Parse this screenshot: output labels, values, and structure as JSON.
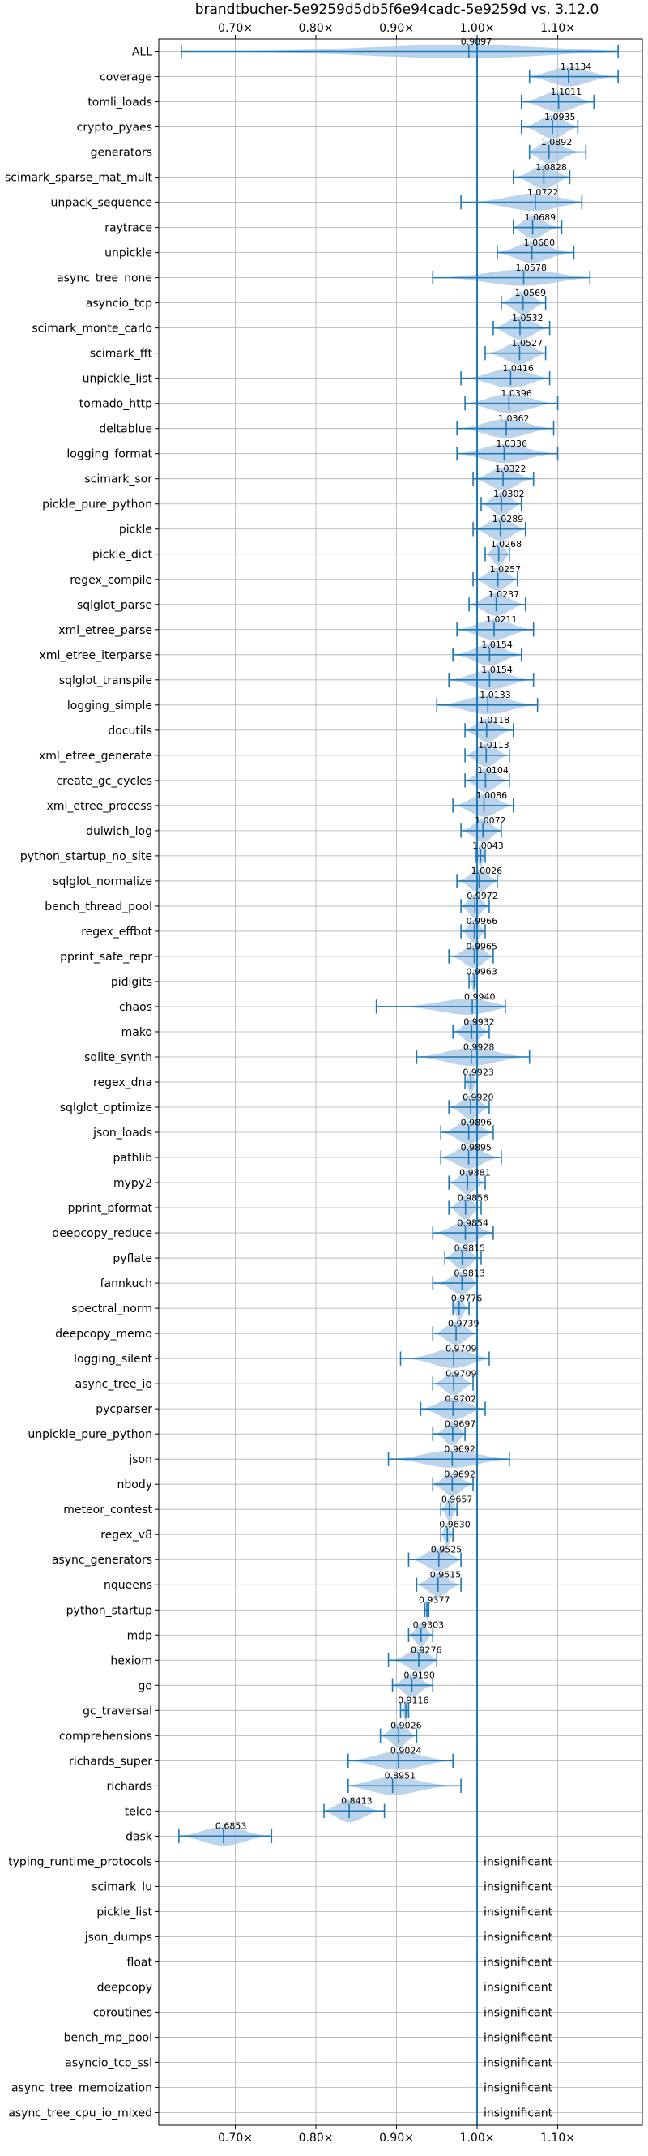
{
  "chart_data": {
    "type": "violin",
    "title": "brandtbucher-5e9259d5db5f6e94cadc-5e9259d vs. 3.12.0",
    "xlim": [
      0.605,
      1.205
    ],
    "xticks": [
      0.7,
      0.8,
      0.9,
      1.0,
      1.1
    ],
    "xtick_labels": [
      "0.70×",
      "0.80×",
      "0.90×",
      "1.00×",
      "1.10×"
    ],
    "reference_line": 1.0,
    "grid": true,
    "colors": {
      "violin": "#a6c6e4",
      "whisker": "#1f77b4",
      "reference": "#1f77b4",
      "grid": "#b0b0b0"
    },
    "benchmarks": [
      {
        "name": "ALL",
        "value": 0.9897,
        "label": "0.9897",
        "min": 0.633,
        "max": 1.175
      },
      {
        "name": "coverage",
        "value": 1.1134,
        "label": "1.1134",
        "min": 1.065,
        "max": 1.175
      },
      {
        "name": "tomli_loads",
        "value": 1.1011,
        "label": "1.1011",
        "min": 1.055,
        "max": 1.145
      },
      {
        "name": "crypto_pyaes",
        "value": 1.0935,
        "label": "1.0935",
        "min": 1.055,
        "max": 1.125
      },
      {
        "name": "generators",
        "value": 1.0892,
        "label": "1.0892",
        "min": 1.065,
        "max": 1.135
      },
      {
        "name": "scimark_sparse_mat_mult",
        "value": 1.0828,
        "label": "1.0828",
        "min": 1.045,
        "max": 1.115
      },
      {
        "name": "unpack_sequence",
        "value": 1.0722,
        "label": "1.0722",
        "min": 0.98,
        "max": 1.13
      },
      {
        "name": "raytrace",
        "value": 1.0689,
        "label": "1.0689",
        "min": 1.045,
        "max": 1.105
      },
      {
        "name": "unpickle",
        "value": 1.068,
        "label": "1.0680",
        "min": 1.025,
        "max": 1.12
      },
      {
        "name": "async_tree_none",
        "value": 1.0578,
        "label": "1.0578",
        "min": 0.945,
        "max": 1.14
      },
      {
        "name": "asyncio_tcp",
        "value": 1.0569,
        "label": "1.0569",
        "min": 1.03,
        "max": 1.085
      },
      {
        "name": "scimark_monte_carlo",
        "value": 1.0532,
        "label": "1.0532",
        "min": 1.02,
        "max": 1.09
      },
      {
        "name": "scimark_fft",
        "value": 1.0527,
        "label": "1.0527",
        "min": 1.01,
        "max": 1.085
      },
      {
        "name": "unpickle_list",
        "value": 1.0416,
        "label": "1.0416",
        "min": 0.98,
        "max": 1.09
      },
      {
        "name": "tornado_http",
        "value": 1.0396,
        "label": "1.0396",
        "min": 0.985,
        "max": 1.1
      },
      {
        "name": "deltablue",
        "value": 1.0362,
        "label": "1.0362",
        "min": 0.975,
        "max": 1.095
      },
      {
        "name": "logging_format",
        "value": 1.0336,
        "label": "1.0336",
        "min": 0.975,
        "max": 1.1
      },
      {
        "name": "scimark_sor",
        "value": 1.0322,
        "label": "1.0322",
        "min": 0.995,
        "max": 1.07
      },
      {
        "name": "pickle_pure_python",
        "value": 1.0302,
        "label": "1.0302",
        "min": 1.005,
        "max": 1.055
      },
      {
        "name": "pickle",
        "value": 1.0289,
        "label": "1.0289",
        "min": 0.995,
        "max": 1.06
      },
      {
        "name": "pickle_dict",
        "value": 1.0268,
        "label": "1.0268",
        "min": 1.01,
        "max": 1.04
      },
      {
        "name": "regex_compile",
        "value": 1.0257,
        "label": "1.0257",
        "min": 0.995,
        "max": 1.05
      },
      {
        "name": "sqlglot_parse",
        "value": 1.0237,
        "label": "1.0237",
        "min": 0.99,
        "max": 1.06
      },
      {
        "name": "xml_etree_parse",
        "value": 1.0211,
        "label": "1.0211",
        "min": 0.975,
        "max": 1.07
      },
      {
        "name": "xml_etree_iterparse",
        "value": 1.0154,
        "label": "1.0154",
        "min": 0.97,
        "max": 1.055
      },
      {
        "name": "sqlglot_transpile",
        "value": 1.0154,
        "label": "1.0154",
        "min": 0.965,
        "max": 1.07
      },
      {
        "name": "logging_simple",
        "value": 1.0133,
        "label": "1.0133",
        "min": 0.95,
        "max": 1.075
      },
      {
        "name": "docutils",
        "value": 1.0118,
        "label": "1.0118",
        "min": 0.985,
        "max": 1.045
      },
      {
        "name": "xml_etree_generate",
        "value": 1.0113,
        "label": "1.0113",
        "min": 0.985,
        "max": 1.04
      },
      {
        "name": "create_gc_cycles",
        "value": 1.0104,
        "label": "1.0104",
        "min": 0.985,
        "max": 1.04
      },
      {
        "name": "xml_etree_process",
        "value": 1.0086,
        "label": "1.0086",
        "min": 0.97,
        "max": 1.045
      },
      {
        "name": "dulwich_log",
        "value": 1.0072,
        "label": "1.0072",
        "min": 0.98,
        "max": 1.03
      },
      {
        "name": "python_startup_no_site",
        "value": 1.0043,
        "label": "1.0043",
        "min": 0.998,
        "max": 1.01
      },
      {
        "name": "sqlglot_normalize",
        "value": 1.0026,
        "label": "1.0026",
        "min": 0.975,
        "max": 1.025
      },
      {
        "name": "bench_thread_pool",
        "value": 0.9972,
        "label": "0.9972",
        "min": 0.98,
        "max": 1.015
      },
      {
        "name": "regex_effbot",
        "value": 0.9966,
        "label": "0.9966",
        "min": 0.98,
        "max": 1.01
      },
      {
        "name": "pprint_safe_repr",
        "value": 0.9965,
        "label": "0.9965",
        "min": 0.965,
        "max": 1.02
      },
      {
        "name": "pidigits",
        "value": 0.9963,
        "label": "0.9963",
        "min": 0.99,
        "max": 1.0
      },
      {
        "name": "chaos",
        "value": 0.994,
        "label": "0.9940",
        "min": 0.875,
        "max": 1.035
      },
      {
        "name": "mako",
        "value": 0.9932,
        "label": "0.9932",
        "min": 0.97,
        "max": 1.015
      },
      {
        "name": "sqlite_synth",
        "value": 0.9928,
        "label": "0.9928",
        "min": 0.925,
        "max": 1.065
      },
      {
        "name": "regex_dna",
        "value": 0.9923,
        "label": "0.9923",
        "min": 0.985,
        "max": 1.0
      },
      {
        "name": "sqlglot_optimize",
        "value": 0.992,
        "label": "0.9920",
        "min": 0.965,
        "max": 1.015
      },
      {
        "name": "json_loads",
        "value": 0.9896,
        "label": "0.9896",
        "min": 0.955,
        "max": 1.02
      },
      {
        "name": "pathlib",
        "value": 0.9895,
        "label": "0.9895",
        "min": 0.955,
        "max": 1.03
      },
      {
        "name": "mypy2",
        "value": 0.9881,
        "label": "0.9881",
        "min": 0.965,
        "max": 1.01
      },
      {
        "name": "pprint_pformat",
        "value": 0.9856,
        "label": "0.9856",
        "min": 0.965,
        "max": 1.005
      },
      {
        "name": "deepcopy_reduce",
        "value": 0.9854,
        "label": "0.9854",
        "min": 0.945,
        "max": 1.02
      },
      {
        "name": "pyflate",
        "value": 0.9815,
        "label": "0.9815",
        "min": 0.96,
        "max": 1.005
      },
      {
        "name": "fannkuch",
        "value": 0.9813,
        "label": "0.9813",
        "min": 0.945,
        "max": 1.0
      },
      {
        "name": "spectral_norm",
        "value": 0.9776,
        "label": "0.9776",
        "min": 0.97,
        "max": 0.99
      },
      {
        "name": "deepcopy_memo",
        "value": 0.9739,
        "label": "0.9739",
        "min": 0.945,
        "max": 1.0
      },
      {
        "name": "logging_silent",
        "value": 0.9709,
        "label": "0.9709",
        "min": 0.905,
        "max": 1.015
      },
      {
        "name": "async_tree_io",
        "value": 0.9709,
        "label": "0.9709",
        "min": 0.945,
        "max": 0.995
      },
      {
        "name": "pycparser",
        "value": 0.9702,
        "label": "0.9702",
        "min": 0.93,
        "max": 1.01
      },
      {
        "name": "unpickle_pure_python",
        "value": 0.9697,
        "label": "0.9697",
        "min": 0.945,
        "max": 0.985
      },
      {
        "name": "json",
        "value": 0.9692,
        "label": "0.9692",
        "min": 0.89,
        "max": 1.04
      },
      {
        "name": "nbody",
        "value": 0.9692,
        "label": "0.9692",
        "min": 0.945,
        "max": 0.995
      },
      {
        "name": "meteor_contest",
        "value": 0.9657,
        "label": "0.9657",
        "min": 0.955,
        "max": 0.975
      },
      {
        "name": "regex_v8",
        "value": 0.963,
        "label": "0.9630",
        "min": 0.955,
        "max": 0.97
      },
      {
        "name": "async_generators",
        "value": 0.9525,
        "label": "0.9525",
        "min": 0.915,
        "max": 0.98
      },
      {
        "name": "nqueens",
        "value": 0.9515,
        "label": "0.9515",
        "min": 0.925,
        "max": 0.98
      },
      {
        "name": "python_startup",
        "value": 0.9377,
        "label": "0.9377",
        "min": 0.935,
        "max": 0.94
      },
      {
        "name": "mdp",
        "value": 0.9303,
        "label": "0.9303",
        "min": 0.915,
        "max": 0.945
      },
      {
        "name": "hexiom",
        "value": 0.9276,
        "label": "0.9276",
        "min": 0.89,
        "max": 0.95
      },
      {
        "name": "go",
        "value": 0.919,
        "label": "0.9190",
        "min": 0.895,
        "max": 0.945
      },
      {
        "name": "gc_traversal",
        "value": 0.9116,
        "label": "0.9116",
        "min": 0.905,
        "max": 0.915
      },
      {
        "name": "comprehensions",
        "value": 0.9026,
        "label": "0.9026",
        "min": 0.88,
        "max": 0.925
      },
      {
        "name": "richards_super",
        "value": 0.9024,
        "label": "0.9024",
        "min": 0.84,
        "max": 0.97
      },
      {
        "name": "richards",
        "value": 0.8951,
        "label": "0.8951",
        "min": 0.84,
        "max": 0.98
      },
      {
        "name": "telco",
        "value": 0.8413,
        "label": "0.8413",
        "min": 0.81,
        "max": 0.885
      },
      {
        "name": "dask",
        "value": 0.6853,
        "label": "0.6853",
        "min": 0.63,
        "max": 0.745
      },
      {
        "name": "typing_runtime_protocols",
        "insignificant": true,
        "label": "insignificant"
      },
      {
        "name": "scimark_lu",
        "insignificant": true,
        "label": "insignificant"
      },
      {
        "name": "pickle_list",
        "insignificant": true,
        "label": "insignificant"
      },
      {
        "name": "json_dumps",
        "insignificant": true,
        "label": "insignificant"
      },
      {
        "name": "float",
        "insignificant": true,
        "label": "insignificant"
      },
      {
        "name": "deepcopy",
        "insignificant": true,
        "label": "insignificant"
      },
      {
        "name": "coroutines",
        "insignificant": true,
        "label": "insignificant"
      },
      {
        "name": "bench_mp_pool",
        "insignificant": true,
        "label": "insignificant"
      },
      {
        "name": "asyncio_tcp_ssl",
        "insignificant": true,
        "label": "insignificant"
      },
      {
        "name": "async_tree_memoization",
        "insignificant": true,
        "label": "insignificant"
      },
      {
        "name": "async_tree_cpu_io_mixed",
        "insignificant": true,
        "label": "insignificant"
      }
    ]
  }
}
